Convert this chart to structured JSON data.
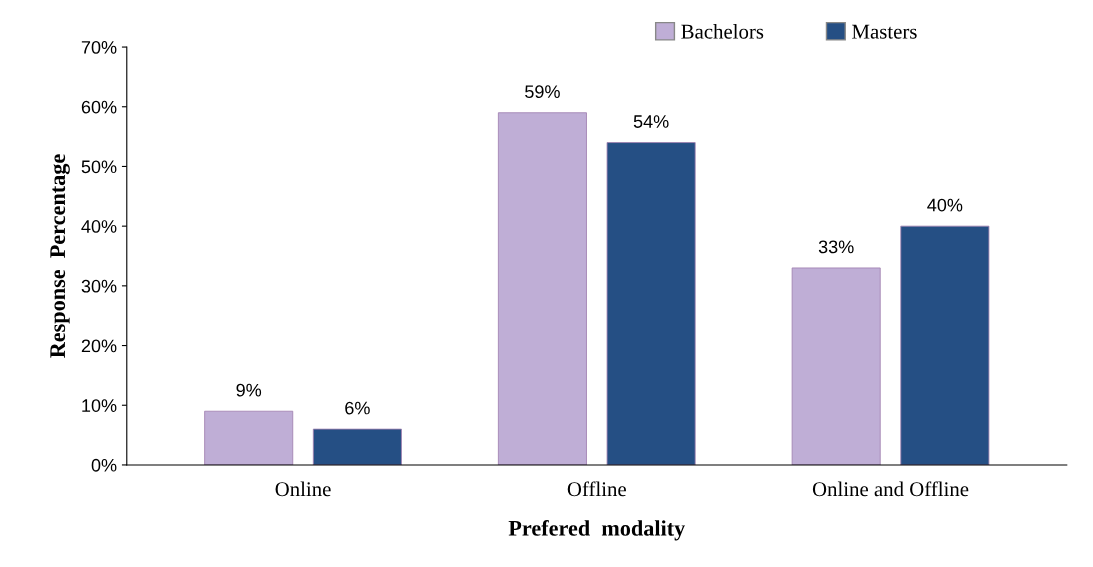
{
  "chart_data": {
    "type": "bar",
    "xlabel": "Prefered  modality",
    "ylabel": "Response  Percentage",
    "categories": [
      "Online",
      "Offline",
      "Online and Offline"
    ],
    "series": [
      {
        "name": "Bachelors",
        "color": "#bfaed6",
        "values": [
          9,
          59,
          33
        ],
        "value_labels": [
          "9%",
          "59%",
          "33%"
        ]
      },
      {
        "name": "Masters",
        "color": "#254f84",
        "values": [
          6,
          54,
          40
        ],
        "value_labels": [
          "6%",
          "54%",
          "40%"
        ]
      }
    ],
    "ylim": [
      0,
      70
    ],
    "yticks": [
      {
        "value": 0,
        "label": "0%"
      },
      {
        "value": 10,
        "label": "10%"
      },
      {
        "value": 20,
        "label": "20%"
      },
      {
        "value": 30,
        "label": "30%"
      },
      {
        "value": 40,
        "label": "40%"
      },
      {
        "value": 50,
        "label": "50%"
      },
      {
        "value": 60,
        "label": "60%"
      },
      {
        "value": 70,
        "label": "70%"
      }
    ],
    "grid": false,
    "legend": "top right"
  }
}
